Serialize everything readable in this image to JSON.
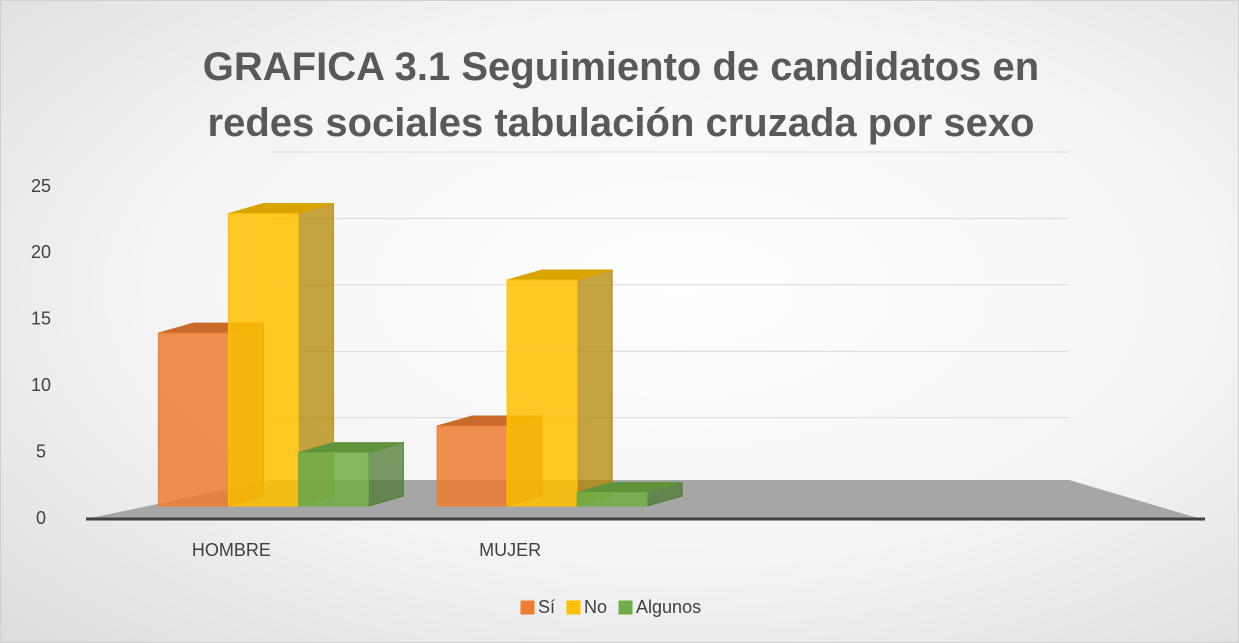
{
  "chart_data": {
    "type": "bar3d",
    "title": "GRAFICA 3.1 Seguimiento de candidatos en redes sociales tabulación cruzada por sexo",
    "categories": [
      "HOMBRE",
      "MUJER",
      null,
      null
    ],
    "series": [
      {
        "name": "Sí",
        "color": "#ED7D31",
        "values": [
          14,
          7,
          null,
          null
        ]
      },
      {
        "name": "No",
        "color": "#FFC000",
        "values": [
          23,
          18,
          null,
          null
        ]
      },
      {
        "name": "Algunos",
        "color": "#70AD47",
        "values": [
          5,
          2,
          null,
          null
        ]
      }
    ],
    "ylim": [
      0,
      25
    ],
    "yticks": [
      0,
      5,
      10,
      15,
      20,
      25
    ],
    "grid": true,
    "legend": "bottom"
  }
}
